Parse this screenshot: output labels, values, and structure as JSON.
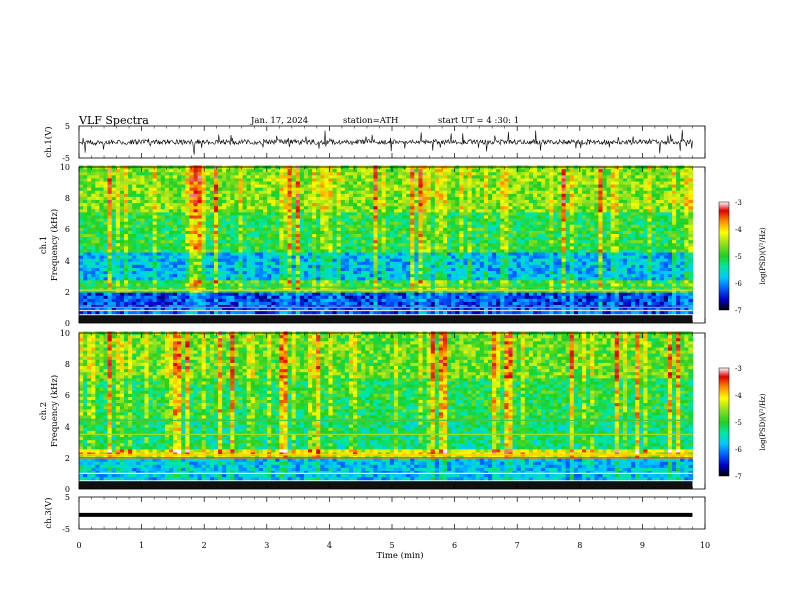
{
  "header": {
    "title": "VLF  Spectra",
    "date": "Jan. 17, 2024",
    "station": "station=ATH",
    "start": "start  UT  =   4  :30: 1"
  },
  "chart_data": [
    {
      "type": "line",
      "name": "ch1-waveform",
      "ylabel": "ch.1(V)",
      "yticks": [
        "5",
        "-5"
      ],
      "ylim": [
        -5,
        5
      ],
      "xlim": [
        0,
        10
      ],
      "baseline": 0,
      "trace_ends_at_min": 9.8
    },
    {
      "type": "heatmap",
      "name": "ch1-spectrogram",
      "ylabel": "ch.1 Frequency (kHz)",
      "ylabel_line1": "ch.1",
      "ylabel_line2": "Frequency (kHz)",
      "yticks": [
        "0",
        "2",
        "4",
        "6",
        "8",
        "10"
      ],
      "ylim": [
        0,
        10
      ],
      "xlim": [
        0,
        10
      ],
      "color_range": [
        -7,
        -3
      ],
      "colorbar_label": "log(PSD)(V²/Hz)",
      "colorbar_ticks": [
        "-3",
        "-4",
        "-5",
        "-6",
        "-7"
      ],
      "colormap": [
        "#000000",
        "#0000c8",
        "#0060ff",
        "#00c8ff",
        "#00e8a0",
        "#20d020",
        "#9ae020",
        "#ffff00",
        "#ff9000",
        "#e00000",
        "#ffffff"
      ]
    },
    {
      "type": "heatmap",
      "name": "ch2-spectrogram",
      "ylabel": "ch.2 Frequency (kHz)",
      "ylabel_line1": "ch.2",
      "ylabel_line2": "Frequency (kHz)",
      "yticks": [
        "0",
        "2",
        "4",
        "6",
        "8",
        "10"
      ],
      "ylim": [
        0,
        10
      ],
      "xlim": [
        0,
        10
      ],
      "color_range": [
        -7,
        -3
      ],
      "colorbar_label": "log(PSD)(V²/Hz)",
      "colorbar_ticks": [
        "-3",
        "-4",
        "-5",
        "-6",
        "-7"
      ]
    },
    {
      "type": "line",
      "name": "ch3-waveform",
      "ylabel": "ch.3(V)",
      "yticks": [
        "5",
        "-5"
      ],
      "ylim": [
        -5,
        5
      ],
      "xlim": [
        0,
        10
      ],
      "constant_value": -0.6,
      "trace_ends_at_min": 9.8
    }
  ],
  "xaxis": {
    "label": "Time  (min)",
    "ticks": [
      "0",
      "1",
      "2",
      "3",
      "4",
      "5",
      "6",
      "7",
      "8",
      "9",
      "10"
    ]
  }
}
